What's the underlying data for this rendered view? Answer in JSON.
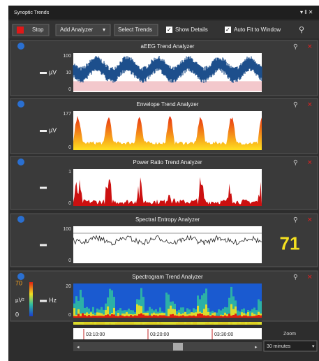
{
  "window": {
    "title": "Synoptic Trends"
  },
  "toolbar": {
    "stop": "Stop",
    "add_analyzer": "Add Analyzer",
    "select_trends": "Select Trends",
    "show_details": "Show Details",
    "auto_fit": "Auto Fit to Window"
  },
  "panels": [
    {
      "title": "aEEG Trend Analyzer",
      "unit": "µV",
      "ticks": [
        "100",
        "10",
        "0"
      ]
    },
    {
      "title": "Envelope Trend Analyzer",
      "unit": "µV",
      "ticks": [
        "177",
        "0"
      ]
    },
    {
      "title": "Power Ratio Trend Analyzer",
      "ticks": [
        "1",
        "0"
      ]
    },
    {
      "title": "Spectral Entropy Analyzer",
      "ticks": [
        "100",
        "0"
      ],
      "value": "71"
    },
    {
      "title": "Spectrogram Trend Analyzer",
      "unit": "Hz",
      "ticks": [
        "20",
        "0"
      ],
      "colorbar": {
        "max": "70",
        "unit": "µV²",
        "min": "0"
      }
    }
  ],
  "timeline": {
    "times": [
      "03:10:00",
      "03:20:00",
      "03:30:00"
    ],
    "zoom_label": "Zoom",
    "zoom": "30 minutes"
  }
}
